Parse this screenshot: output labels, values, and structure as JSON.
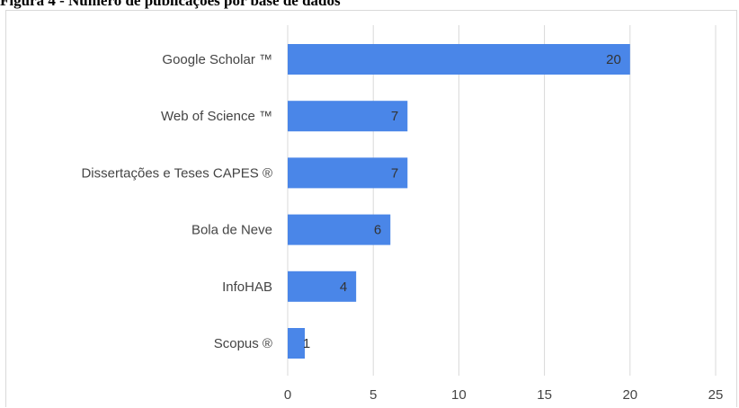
{
  "figure": {
    "title": "Figura 4 - Número de publicações por base de dados"
  },
  "chart_data": {
    "type": "bar",
    "orientation": "horizontal",
    "categories": [
      "Google Scholar ™",
      "Web of Science ™",
      "Dissertações e Teses CAPES ®",
      "Bola de Neve",
      "InfoHAB",
      "Scopus ®"
    ],
    "values": [
      20,
      7,
      7,
      6,
      4,
      1
    ],
    "data_labels": [
      "20",
      "7",
      "7",
      "6",
      "4",
      "1"
    ],
    "xlim": [
      0,
      25
    ],
    "xticks": [
      0,
      5,
      10,
      15,
      20,
      25
    ],
    "grid": true,
    "legend": "none",
    "colors": {
      "bar": "#4a86e8",
      "grid": "#d9d9d9",
      "text": "#444444"
    }
  }
}
